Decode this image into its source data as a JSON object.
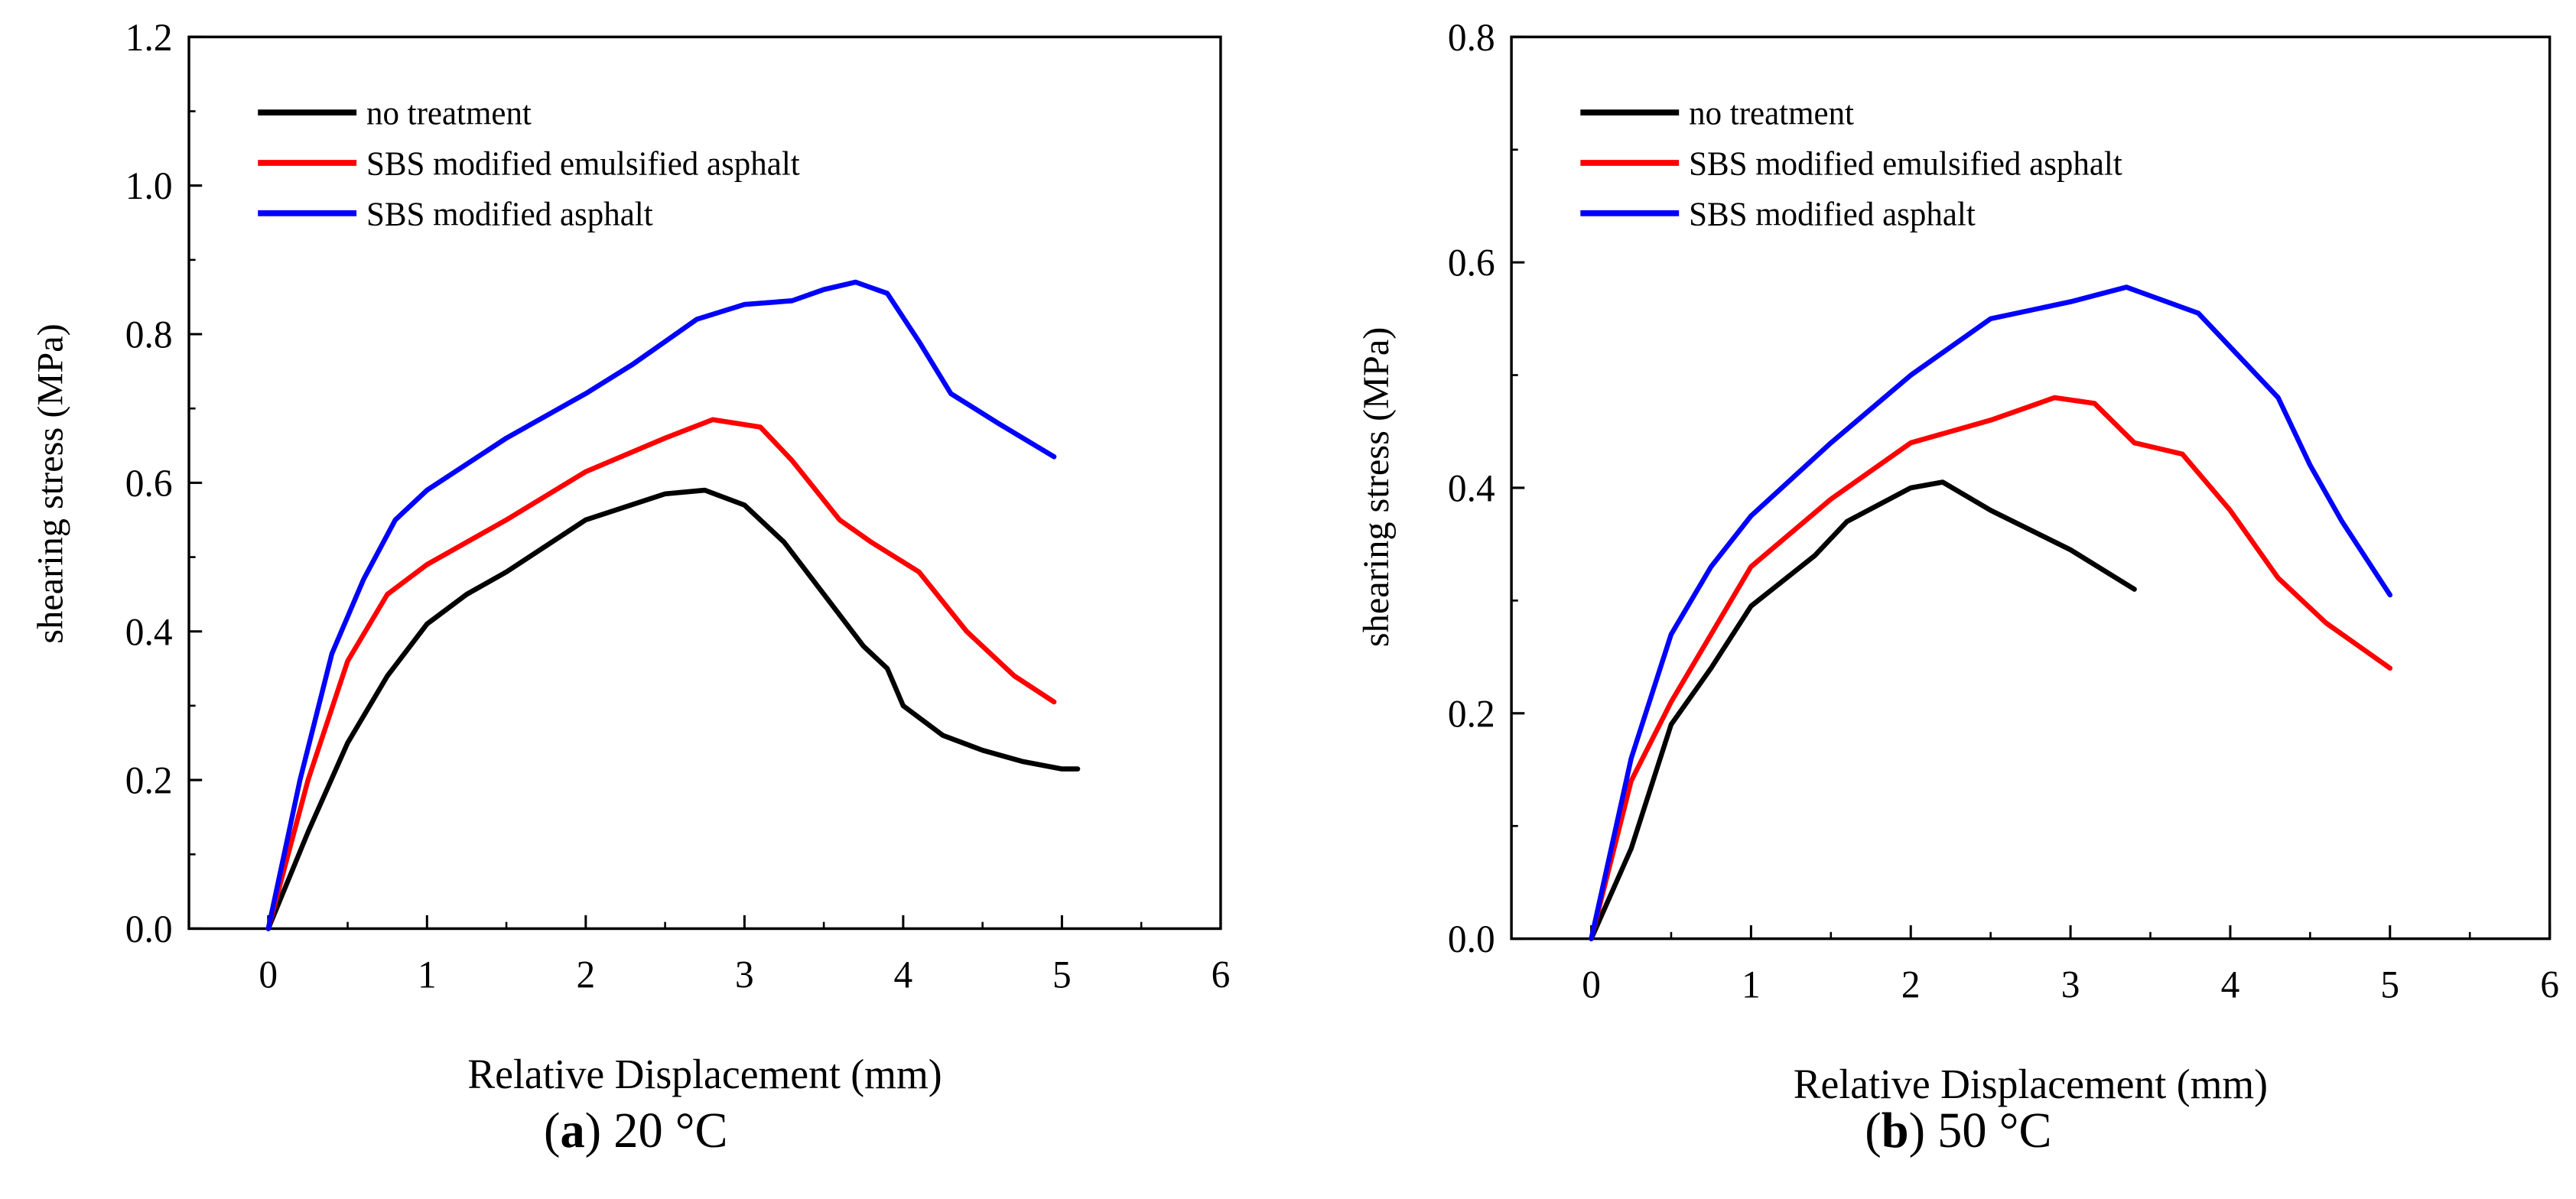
{
  "chart_data": [
    {
      "type": "line",
      "panel_label": "a",
      "caption": "20 °C",
      "xlabel": "Relative Displacement (mm)",
      "ylabel": "shearing stress (MPa)",
      "xlim": [
        -0.5,
        6
      ],
      "ylim": [
        0,
        1.2
      ],
      "xticks": [
        0,
        1,
        2,
        3,
        4,
        5,
        6
      ],
      "yticks": [
        "0.0",
        "0.2",
        "0.4",
        "0.6",
        "0.8",
        "1.0",
        "1.2"
      ],
      "grid": false,
      "legend_position": "top-left",
      "series": [
        {
          "name": "no treatment",
          "color": "#000000",
          "points": [
            [
              0,
              0
            ],
            [
              0.25,
              0.13
            ],
            [
              0.5,
              0.25
            ],
            [
              0.75,
              0.34
            ],
            [
              1,
              0.41
            ],
            [
              1.25,
              0.45
            ],
            [
              1.5,
              0.48
            ],
            [
              2,
              0.55
            ],
            [
              2.5,
              0.585
            ],
            [
              2.75,
              0.59
            ],
            [
              3,
              0.57
            ],
            [
              3.25,
              0.52
            ],
            [
              3.5,
              0.45
            ],
            [
              3.75,
              0.38
            ],
            [
              3.9,
              0.35
            ],
            [
              4,
              0.3
            ],
            [
              4.25,
              0.26
            ],
            [
              4.5,
              0.24
            ],
            [
              4.75,
              0.225
            ],
            [
              5,
              0.215
            ],
            [
              5.1,
              0.215
            ]
          ]
        },
        {
          "name": "SBS modified emulsified asphalt",
          "color": "#ff0000",
          "points": [
            [
              0,
              0
            ],
            [
              0.25,
              0.2
            ],
            [
              0.5,
              0.36
            ],
            [
              0.75,
              0.45
            ],
            [
              1,
              0.49
            ],
            [
              1.5,
              0.55
            ],
            [
              2,
              0.615
            ],
            [
              2.5,
              0.66
            ],
            [
              2.8,
              0.685
            ],
            [
              3.1,
              0.675
            ],
            [
              3.3,
              0.63
            ],
            [
              3.6,
              0.55
            ],
            [
              3.8,
              0.52
            ],
            [
              4.1,
              0.48
            ],
            [
              4.4,
              0.4
            ],
            [
              4.7,
              0.34
            ],
            [
              4.95,
              0.305
            ]
          ]
        },
        {
          "name": "SBS modified asphalt",
          "color": "#0000ff",
          "points": [
            [
              0,
              0
            ],
            [
              0.2,
              0.2
            ],
            [
              0.4,
              0.37
            ],
            [
              0.6,
              0.47
            ],
            [
              0.8,
              0.55
            ],
            [
              1,
              0.59
            ],
            [
              1.5,
              0.66
            ],
            [
              2,
              0.72
            ],
            [
              2.3,
              0.76
            ],
            [
              2.7,
              0.82
            ],
            [
              3,
              0.84
            ],
            [
              3.3,
              0.845
            ],
            [
              3.5,
              0.86
            ],
            [
              3.7,
              0.87
            ],
            [
              3.9,
              0.855
            ],
            [
              4.1,
              0.79
            ],
            [
              4.3,
              0.72
            ],
            [
              4.6,
              0.68
            ],
            [
              4.95,
              0.635
            ]
          ]
        }
      ]
    },
    {
      "type": "line",
      "panel_label": "b",
      "caption": "50 °C",
      "xlabel": "Relative Displacement (mm)",
      "ylabel": "shearing stress (MPa)",
      "xlim": [
        -0.5,
        6
      ],
      "ylim": [
        0,
        0.8
      ],
      "xticks": [
        0,
        1,
        2,
        3,
        4,
        5,
        6
      ],
      "yticks": [
        "0.0",
        "0.2",
        "0.4",
        "0.6",
        "0.8"
      ],
      "grid": false,
      "legend_position": "top-left",
      "series": [
        {
          "name": "no treatment",
          "color": "#000000",
          "points": [
            [
              0,
              0
            ],
            [
              0.25,
              0.08
            ],
            [
              0.5,
              0.19
            ],
            [
              0.75,
              0.24
            ],
            [
              1,
              0.295
            ],
            [
              1.4,
              0.34
            ],
            [
              1.6,
              0.37
            ],
            [
              2,
              0.4
            ],
            [
              2.2,
              0.405
            ],
            [
              2.5,
              0.38
            ],
            [
              3,
              0.345
            ],
            [
              3.4,
              0.31
            ]
          ]
        },
        {
          "name": "SBS modified emulsified asphalt",
          "color": "#ff0000",
          "points": [
            [
              0,
              0
            ],
            [
              0.25,
              0.14
            ],
            [
              0.5,
              0.21
            ],
            [
              0.75,
              0.27
            ],
            [
              1,
              0.33
            ],
            [
              1.5,
              0.39
            ],
            [
              2,
              0.44
            ],
            [
              2.5,
              0.46
            ],
            [
              2.9,
              0.48
            ],
            [
              3.15,
              0.475
            ],
            [
              3.4,
              0.44
            ],
            [
              3.7,
              0.43
            ],
            [
              4,
              0.38
            ],
            [
              4.3,
              0.32
            ],
            [
              4.6,
              0.28
            ],
            [
              5,
              0.24
            ]
          ]
        },
        {
          "name": "SBS modified asphalt",
          "color": "#0000ff",
          "points": [
            [
              0,
              0
            ],
            [
              0.25,
              0.16
            ],
            [
              0.5,
              0.27
            ],
            [
              0.75,
              0.33
            ],
            [
              1,
              0.375
            ],
            [
              1.5,
              0.44
            ],
            [
              2,
              0.5
            ],
            [
              2.5,
              0.55
            ],
            [
              3,
              0.565
            ],
            [
              3.35,
              0.578
            ],
            [
              3.8,
              0.555
            ],
            [
              4,
              0.525
            ],
            [
              4.3,
              0.48
            ],
            [
              4.5,
              0.42
            ],
            [
              4.7,
              0.37
            ],
            [
              5,
              0.305
            ]
          ]
        }
      ]
    }
  ]
}
